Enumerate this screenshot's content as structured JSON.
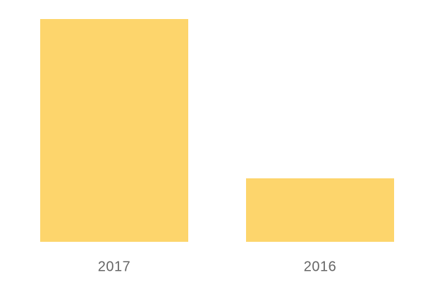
{
  "chart_data": {
    "type": "bar",
    "categories": [
      "2017",
      "2016"
    ],
    "values": [
      100,
      28.5
    ],
    "color": "#fdd56c",
    "ylim": [
      0,
      100
    ]
  }
}
